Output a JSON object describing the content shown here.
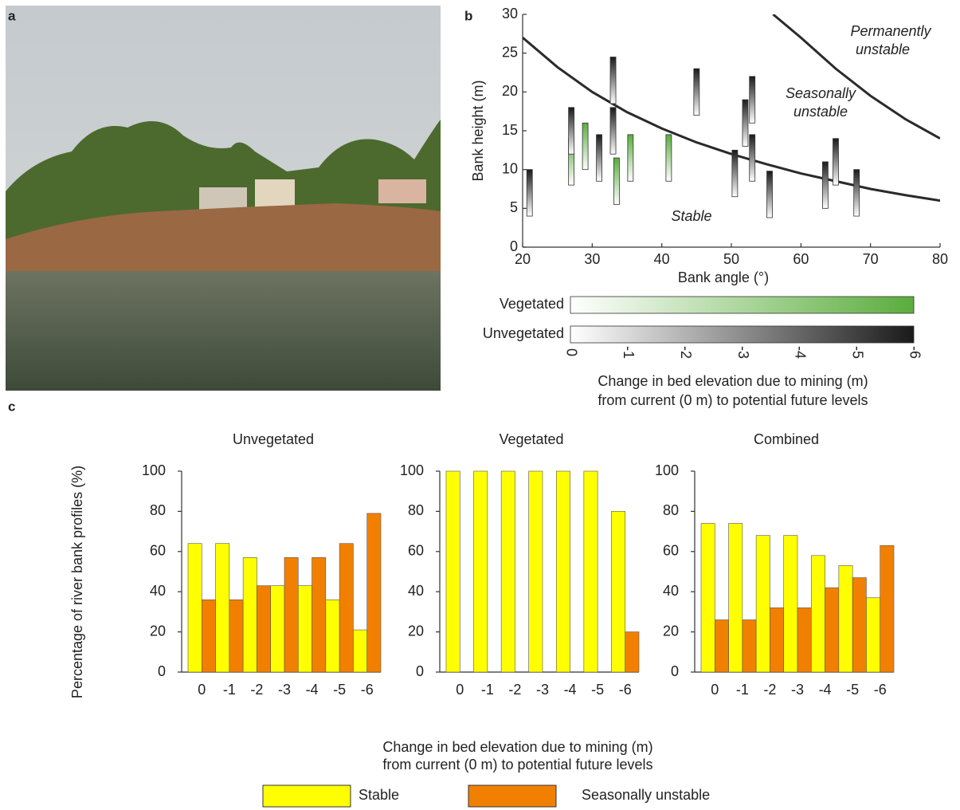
{
  "panel_labels": [
    "a",
    "b",
    "c"
  ],
  "chart_data": [
    {
      "type": "range",
      "xlabel": "Bank angle (°)",
      "ylabel": "Bank height (m)",
      "xlim": [
        20,
        80
      ],
      "xticks": [
        20,
        30,
        40,
        50,
        60,
        70,
        80
      ],
      "ylim": [
        0,
        30
      ],
      "yticks": [
        0,
        5,
        10,
        15,
        20,
        25,
        30
      ],
      "series": [
        {
          "name": "Vegetated",
          "color": "#5aad3c",
          "x": [
            27,
            29,
            33.5,
            35.5,
            41
          ],
          "values": [
            8,
            10,
            5.5,
            8.5,
            8.5
          ]
        },
        {
          "name": "Unvegetated",
          "color": "#1a1a1a",
          "x": [
            21,
            27,
            31,
            33,
            33,
            45,
            50.5,
            52,
            53,
            53,
            55.5,
            63.5,
            65,
            68
          ],
          "values": [
            4,
            12,
            8.5,
            18.5,
            12,
            17,
            6.5,
            13,
            16,
            8.5,
            3.8,
            5,
            8,
            4
          ]
        }
      ],
      "boundaries": [
        {
          "x": [
            20,
            25,
            30,
            35,
            40,
            45,
            50,
            55,
            60,
            65,
            70,
            75,
            80
          ],
          "values": [
            27,
            23.2,
            20,
            17.4,
            15.3,
            13.5,
            12,
            10.7,
            9.5,
            8.5,
            7.5,
            6.7,
            6
          ]
        },
        {
          "x": [
            56,
            60,
            65,
            70,
            75,
            80
          ],
          "values": [
            30,
            27,
            23,
            19.5,
            16.5,
            14
          ]
        }
      ],
      "annotations": [
        "Permanently",
        "unstable",
        "Seasonally",
        "unstable",
        "Stable"
      ],
      "colorbar": {
        "ticks": [
          0,
          -1,
          -2,
          -3,
          -4,
          -5,
          -6
        ],
        "label": [
          "Change in bed elevation due to mining (m)",
          "from current (0 m) to potential future levels"
        ]
      }
    },
    {
      "type": "bar",
      "title": "Unvegetated",
      "ylabel": "Percentage of river bank profiles (%)",
      "xlabel": [
        "Change in bed elevation due to mining (m)",
        "from current (0 m) to potential future levels"
      ],
      "categories": [
        "0",
        "-1",
        "-2",
        "-3",
        "-4",
        "-5",
        "-6"
      ],
      "ylim": [
        0,
        100
      ],
      "yticks": [
        0,
        20,
        40,
        60,
        80,
        100
      ],
      "series": [
        {
          "name": "Stable",
          "color": "#ffff00",
          "values": [
            64,
            64,
            57,
            43,
            43,
            36,
            21
          ]
        },
        {
          "name": "Seasonally unstable",
          "color": "#f28000",
          "values": [
            36,
            36,
            43,
            57,
            57,
            64,
            79
          ]
        }
      ]
    },
    {
      "type": "bar",
      "title": "Vegetated",
      "categories": [
        "0",
        "-1",
        "-2",
        "-3",
        "-4",
        "-5",
        "-6"
      ],
      "ylim": [
        0,
        100
      ],
      "yticks": [
        0,
        20,
        40,
        60,
        80,
        100
      ],
      "series": [
        {
          "name": "Stable",
          "color": "#ffff00",
          "values": [
            100,
            100,
            100,
            100,
            100,
            100,
            80
          ]
        },
        {
          "name": "Seasonally unstable",
          "color": "#f28000",
          "values": [
            0,
            0,
            0,
            0,
            0,
            0,
            20
          ]
        }
      ]
    },
    {
      "type": "bar",
      "title": "Combined",
      "categories": [
        "0",
        "-1",
        "-2",
        "-3",
        "-4",
        "-5",
        "-6"
      ],
      "ylim": [
        0,
        100
      ],
      "yticks": [
        0,
        20,
        40,
        60,
        80,
        100
      ],
      "series": [
        {
          "name": "Stable",
          "color": "#ffff00",
          "values": [
            74,
            74,
            68,
            68,
            58,
            53,
            37
          ]
        },
        {
          "name": "Seasonally unstable",
          "color": "#f28000",
          "values": [
            26,
            26,
            32,
            32,
            42,
            47,
            63
          ]
        }
      ]
    }
  ]
}
